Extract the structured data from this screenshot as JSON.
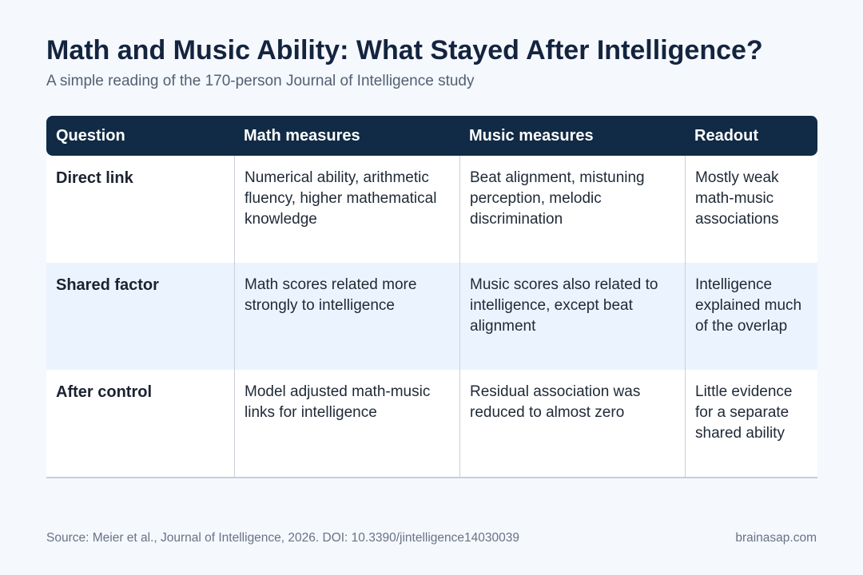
{
  "header": {
    "title": "Math and Music Ability: What Stayed After Intelligence?",
    "subtitle": "A simple reading of the 170-person Journal of Intelligence study"
  },
  "table": {
    "columns": [
      "Question",
      "Math measures",
      "Music measures",
      "Readout"
    ],
    "rows": [
      {
        "question": "Direct link",
        "math": "Numerical ability, arithmetic fluency, higher mathematical knowledge",
        "music": "Beat alignment, mistuning perception, melodic discrimination",
        "readout": "Mostly weak math-music associations"
      },
      {
        "question": "Shared factor",
        "math": "Math scores related more strongly to intelligence",
        "music": "Music scores also related to intelligence, except beat alignment",
        "readout": "Intelligence explained much of the overlap"
      },
      {
        "question": "After control",
        "math": "Model adjusted math-music links for intelligence",
        "music": "Residual association was reduced to almost zero",
        "readout": "Little evidence for a separate shared ability"
      }
    ]
  },
  "footer": {
    "source": "Source: Meier et al., Journal of Intelligence, 2026. DOI: 10.3390/jintelligence14030039",
    "brand": "brainasap.com"
  },
  "colors": {
    "background": "#f5f8fd",
    "header_row": "#112a45",
    "title_text": "#14243f",
    "row_tint": "#ebf4fe"
  }
}
